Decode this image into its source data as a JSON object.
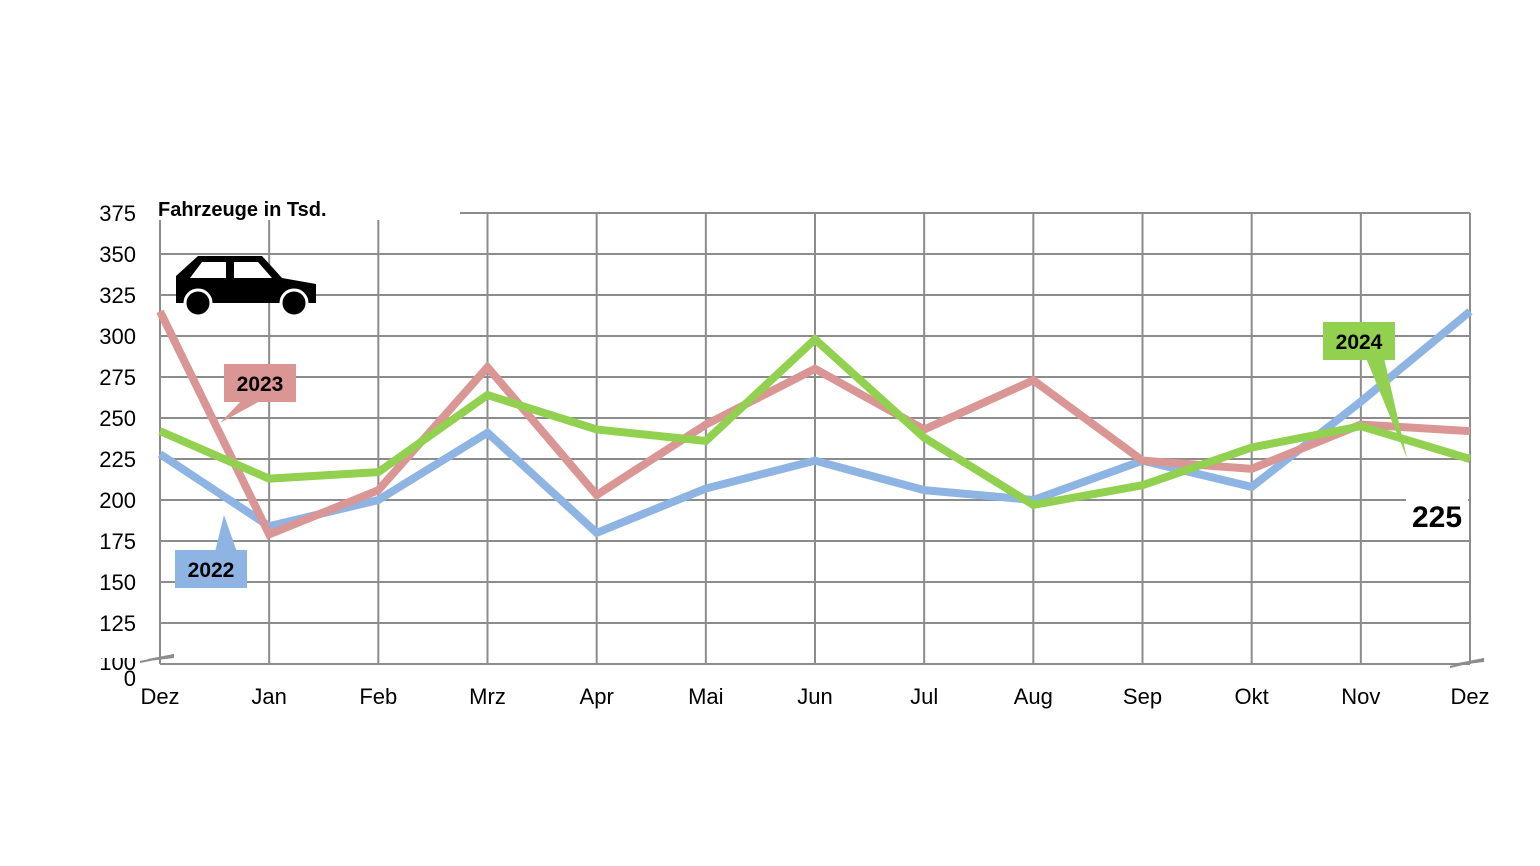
{
  "chart_data": {
    "type": "line",
    "title": "Fahrzeuge in Tsd.",
    "categories": [
      "Dez",
      "Jan",
      "Feb",
      "Mrz",
      "Apr",
      "Mai",
      "Jun",
      "Jul",
      "Aug",
      "Sep",
      "Okt",
      "Nov",
      "Dez"
    ],
    "y_ticks": [
      "0",
      "100",
      "125",
      "150",
      "175",
      "200",
      "225",
      "250",
      "275",
      "300",
      "325",
      "350",
      "375"
    ],
    "ylim": [
      100,
      375
    ],
    "axis_break": true,
    "grid": true,
    "series": [
      {
        "name": "2022",
        "color": "#8EB4E3",
        "values": [
          228,
          184,
          200,
          241,
          180,
          207,
          224,
          206,
          200,
          224,
          208,
          260,
          315
        ]
      },
      {
        "name": "2023",
        "color": "#D99694",
        "values": [
          315,
          179,
          206,
          281,
          203,
          246,
          280,
          243,
          273,
          224,
          219,
          246,
          242
        ]
      },
      {
        "name": "2024",
        "color": "#92D050",
        "values": [
          242,
          213,
          217,
          264,
          243,
          236,
          298,
          238,
          197,
          209,
          232,
          245,
          225
        ]
      }
    ],
    "last_value_label": "225",
    "icon": "car-icon"
  }
}
